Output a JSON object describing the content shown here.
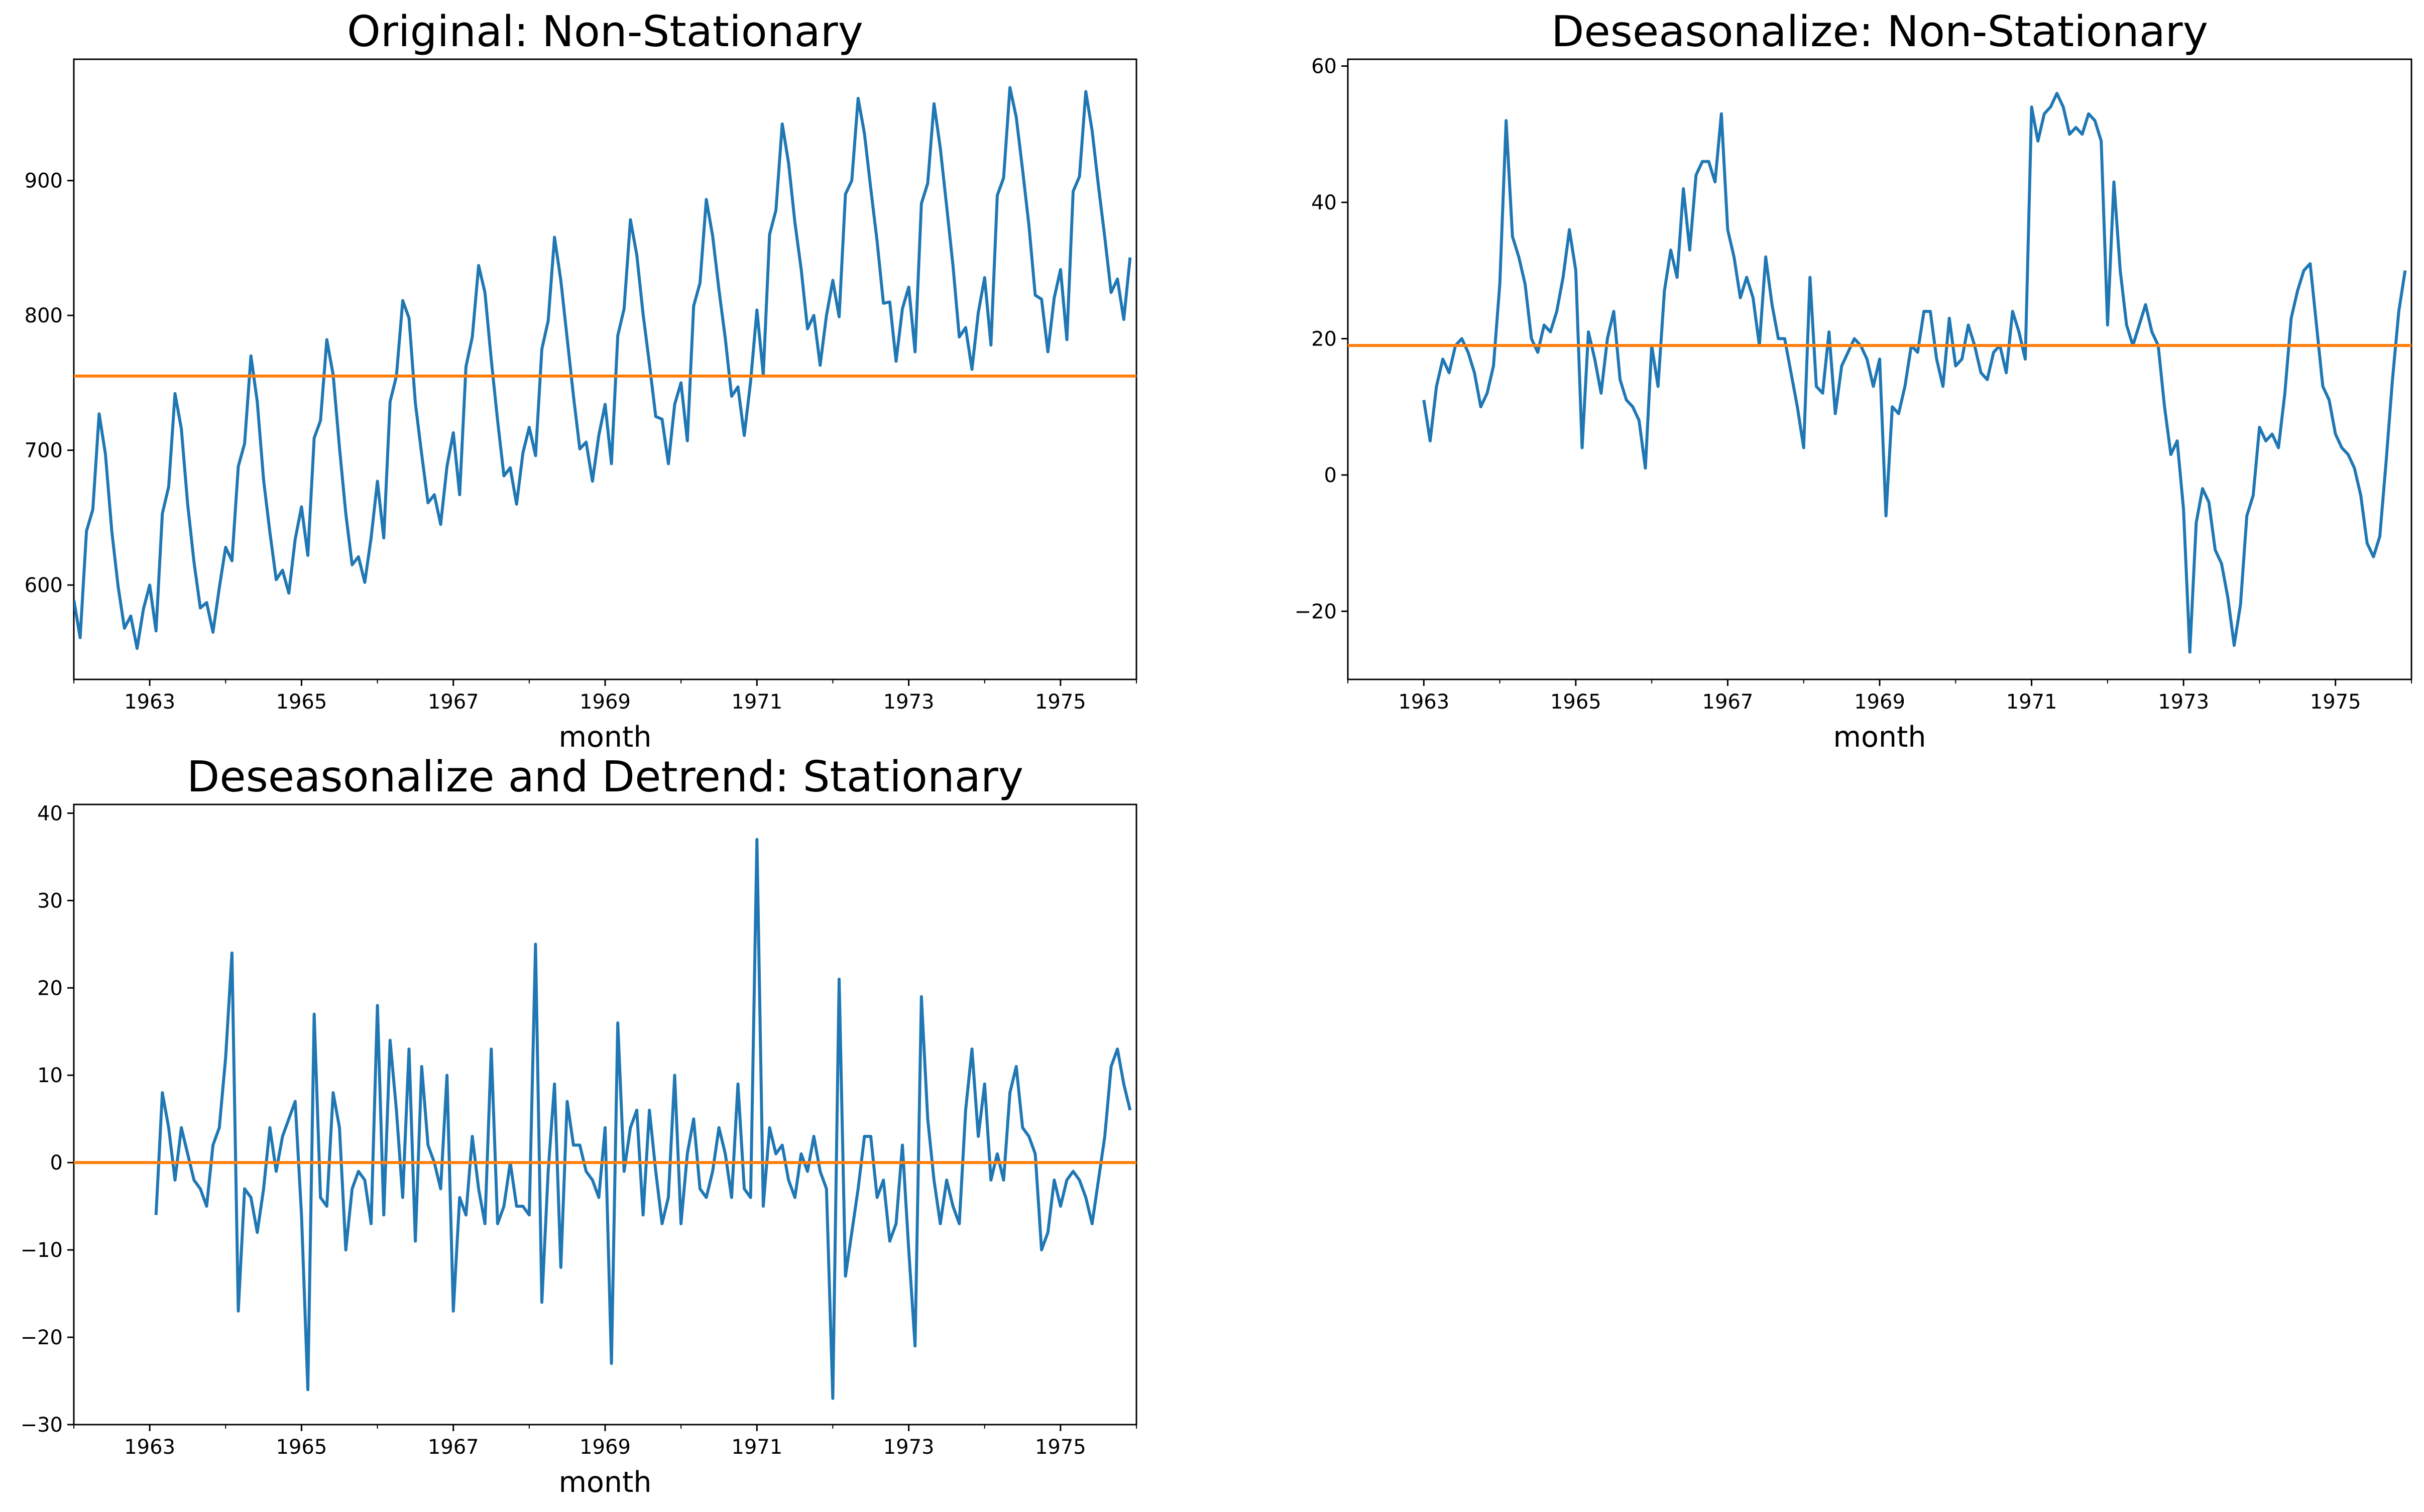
{
  "colors": {
    "series": "#1f77b4",
    "mean_line": "#ff7f0e"
  },
  "chart_data": [
    {
      "type": "line",
      "title": "Original: Non-Stationary",
      "xlabel": "month",
      "ylabel": "",
      "xlim": [
        1962.0,
        1976.0
      ],
      "ylim": [
        530,
        990
      ],
      "xticks": [
        "1963",
        "1965",
        "1967",
        "1969",
        "1971",
        "1973",
        "1975"
      ],
      "yticks": [
        "600",
        "700",
        "800",
        "900"
      ],
      "grid": false,
      "series": [
        {
          "x_start": 1962.0,
          "x_step": 0.0833333,
          "values": [
            589,
            561,
            640,
            656,
            727,
            697,
            640,
            599,
            568,
            577,
            553,
            582,
            600,
            566,
            653,
            673,
            742,
            716,
            660,
            617,
            583,
            587,
            565,
            598,
            628,
            618,
            688,
            705,
            770,
            736,
            678,
            639,
            604,
            611,
            594,
            634,
            658,
            622,
            709,
            722,
            782,
            756,
            702,
            653,
            615,
            621,
            602,
            635,
            677,
            635,
            736,
            755,
            811,
            798,
            735,
            697,
            661,
            667,
            645,
            688,
            713,
            667,
            762,
            784,
            837,
            817,
            767,
            722,
            681,
            687,
            660,
            698,
            717,
            696,
            775,
            796,
            858,
            826,
            783,
            740,
            701,
            706,
            677,
            711,
            734,
            690,
            785,
            805,
            871,
            845,
            801,
            764,
            725,
            723,
            690,
            734,
            750,
            707,
            807,
            824,
            886,
            859,
            819,
            783,
            740,
            747,
            711,
            751,
            804,
            756,
            860,
            878,
            942,
            913,
            869,
            834,
            790,
            800,
            763,
            800,
            826,
            799,
            890,
            900,
            961,
            935,
            894,
            855,
            809,
            810,
            766,
            805,
            821,
            773,
            883,
            898,
            957,
            924,
            881,
            837,
            784,
            791,
            760,
            802,
            828,
            778,
            889,
            902,
            969,
            947,
            908,
            867,
            815,
            812,
            773,
            813,
            834,
            782,
            892,
            903,
            966,
            937,
            896,
            858,
            817,
            827,
            797,
            843
          ]
        }
      ],
      "mean_line": 755
    },
    {
      "type": "line",
      "title": "Deseasonalize: Non-Stationary",
      "xlabel": "month",
      "ylabel": "",
      "xlim": [
        1962.0,
        1976.0
      ],
      "ylim": [
        -30,
        61
      ],
      "xticks": [
        "1963",
        "1965",
        "1967",
        "1969",
        "1971",
        "1973",
        "1975"
      ],
      "yticks": [
        "−20",
        "0",
        "20",
        "40",
        "60"
      ],
      "grid": false,
      "series": [
        {
          "x_start": 1963.0,
          "x_step": 0.0833333,
          "values": [
            11,
            5,
            13,
            17,
            15,
            19,
            20,
            18,
            15,
            10,
            12,
            16,
            28,
            52,
            35,
            32,
            28,
            20,
            18,
            22,
            21,
            24,
            29,
            36,
            30,
            4,
            21,
            17,
            12,
            20,
            24,
            14,
            11,
            10,
            8,
            1,
            19,
            13,
            27,
            33,
            29,
            42,
            33,
            44,
            46,
            46,
            43,
            53,
            36,
            32,
            26,
            29,
            26,
            19,
            32,
            25,
            20,
            20,
            15,
            10,
            4,
            29,
            13,
            12,
            21,
            9,
            16,
            18,
            20,
            19,
            17,
            13,
            17,
            -6,
            10,
            9,
            13,
            19,
            18,
            24,
            24,
            17,
            13,
            23,
            16,
            17,
            22,
            19,
            15,
            14,
            18,
            19,
            15,
            24,
            21,
            17,
            54,
            49,
            53,
            54,
            56,
            54,
            50,
            51,
            50,
            53,
            52,
            49,
            22,
            43,
            30,
            22,
            19,
            22,
            25,
            21,
            19,
            10,
            3,
            5,
            -5,
            -26,
            -7,
            -2,
            -4,
            -11,
            -13,
            -18,
            -25,
            -19,
            -6,
            -3,
            7,
            5,
            6,
            4,
            12,
            23,
            27,
            30,
            31,
            22,
            13,
            11,
            6,
            4,
            3,
            1,
            -3,
            -10,
            -12,
            -9,
            2,
            14,
            24,
            30
          ]
        }
      ],
      "mean_line": 19
    },
    {
      "type": "line",
      "title": "Deseasonalize and Detrend: Stationary",
      "xlabel": "month",
      "ylabel": "",
      "xlim": [
        1962.0,
        1976.0
      ],
      "ylim": [
        -30,
        41
      ],
      "xticks": [
        "1963",
        "1965",
        "1967",
        "1969",
        "1971",
        "1973",
        "1975"
      ],
      "yticks": [
        "−30",
        "−20",
        "−10",
        "0",
        "10",
        "20",
        "30",
        "40"
      ],
      "grid": false,
      "series": [
        {
          "x_start": 1963.0833,
          "x_step": 0.0833333,
          "values": [
            -6,
            8,
            4,
            -2,
            4,
            1,
            -2,
            -3,
            -5,
            2,
            4,
            12,
            24,
            -17,
            -3,
            -4,
            -8,
            -3,
            4,
            -1,
            3,
            5,
            7,
            -6,
            -26,
            17,
            -4,
            -5,
            8,
            4,
            -10,
            -3,
            -1,
            -2,
            -7,
            18,
            -6,
            14,
            6,
            -4,
            13,
            -9,
            11,
            2,
            0,
            -3,
            10,
            -17,
            -4,
            -6,
            3,
            -3,
            -7,
            13,
            -7,
            -5,
            0,
            -5,
            -5,
            -6,
            25,
            -16,
            -1,
            9,
            -12,
            7,
            2,
            2,
            -1,
            -2,
            -4,
            4,
            -23,
            16,
            -1,
            4,
            6,
            -6,
            6,
            -1,
            -7,
            -4,
            10,
            -7,
            1,
            5,
            -3,
            -4,
            -1,
            4,
            1,
            -4,
            9,
            -3,
            -4,
            37,
            -5,
            4,
            1,
            2,
            -2,
            -4,
            1,
            -1,
            3,
            -1,
            -3,
            -27,
            21,
            -13,
            -8,
            -3,
            3,
            3,
            -4,
            -2,
            -9,
            -7,
            2,
            -10,
            -21,
            19,
            5,
            -2,
            -7,
            -2,
            -5,
            -7,
            6,
            13,
            3,
            9,
            -2,
            1,
            -2,
            8,
            11,
            4,
            3,
            1,
            -10,
            -8,
            -2,
            -5,
            -2,
            -1,
            -2,
            -4,
            -7,
            -2,
            3,
            11,
            13,
            9,
            6
          ]
        }
      ],
      "mean_line": 0
    }
  ]
}
